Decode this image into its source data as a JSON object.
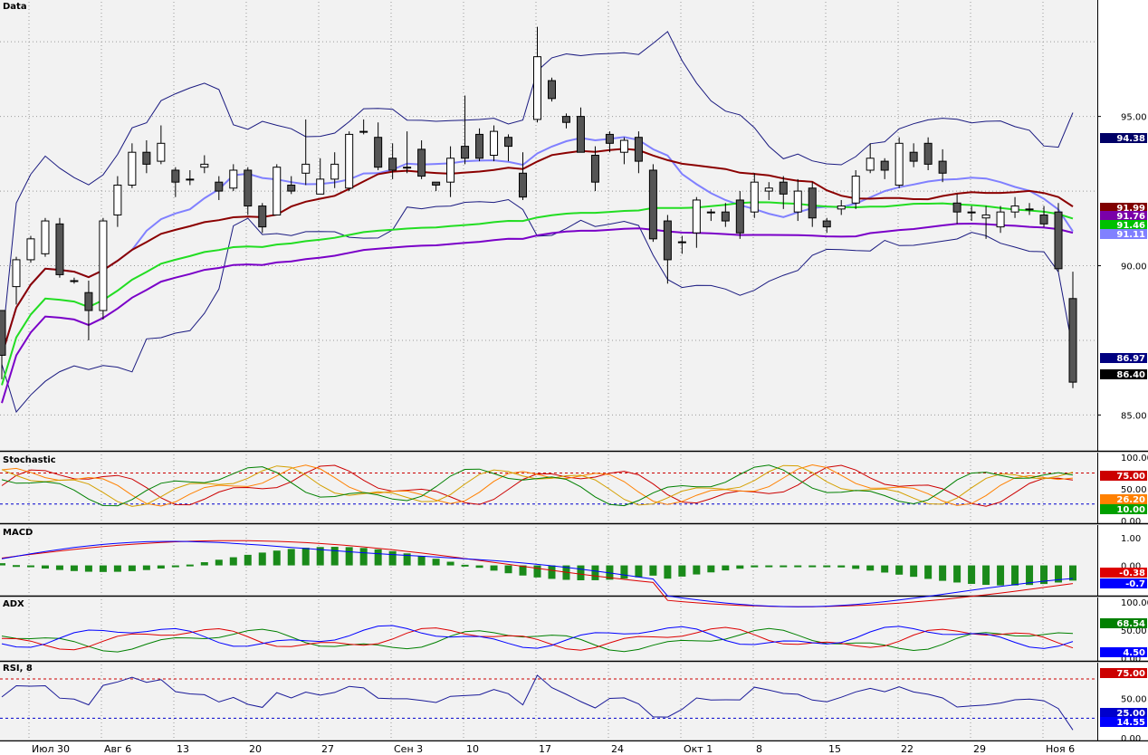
{
  "panels": {
    "data": {
      "label": "Data"
    },
    "stochastic": {
      "label": "Stochastic"
    },
    "macd": {
      "label": "MACD"
    },
    "adx": {
      "label": "ADX"
    },
    "rsi": {
      "label": "RSI, 8"
    }
  },
  "axis": {
    "price_ticks": [
      "95.00",
      "90.00",
      "85.00"
    ],
    "stoch_ticks": [
      "100.00",
      "50.00",
      "0.00"
    ],
    "macd_ticks": [
      "1.00",
      "0.00"
    ],
    "adx_ticks": [
      "100.00",
      "50.00",
      "0.00"
    ],
    "rsi_ticks": [
      "50.00",
      "0.00"
    ],
    "dates": [
      "Июл 30",
      "Авг 6",
      "13",
      "20",
      "27",
      "Сен 3",
      "10",
      "17",
      "24",
      "Окт 1",
      "8",
      "15",
      "22",
      "29",
      "Ноя 6"
    ]
  },
  "chart_data": {
    "type": "candlestick",
    "ylim": [
      83.8,
      98.9
    ],
    "candles": [
      [
        88.5,
        87.0,
        88.5,
        86.2
      ],
      [
        89.3,
        90.2,
        90.3,
        88.7
      ],
      [
        90.2,
        90.9,
        91.0,
        90.1
      ],
      [
        90.4,
        91.5,
        91.6,
        90.3
      ],
      [
        91.4,
        89.7,
        91.6,
        89.6
      ],
      [
        89.5,
        89.5,
        89.6,
        89.4
      ],
      [
        89.1,
        88.5,
        89.5,
        87.5
      ],
      [
        88.5,
        91.5,
        91.6,
        88.2
      ],
      [
        91.7,
        92.7,
        93.0,
        91.3
      ],
      [
        92.7,
        93.8,
        94.1,
        92.6
      ],
      [
        93.8,
        93.4,
        94.2,
        93.1
      ],
      [
        93.5,
        94.1,
        94.7,
        93.4
      ],
      [
        93.2,
        92.8,
        93.3,
        92.3
      ],
      [
        92.9,
        92.9,
        93.2,
        92.7
      ],
      [
        93.3,
        93.4,
        93.7,
        93.1
      ],
      [
        92.8,
        92.5,
        93.0,
        92.2
      ],
      [
        92.6,
        93.2,
        93.4,
        92.5
      ],
      [
        93.2,
        92.0,
        93.3,
        91.7
      ],
      [
        92.0,
        91.3,
        92.1,
        91.1
      ],
      [
        91.7,
        93.3,
        93.4,
        91.7
      ],
      [
        92.7,
        92.5,
        93.0,
        92.4
      ],
      [
        93.1,
        93.4,
        94.9,
        92.7
      ],
      [
        92.4,
        92.9,
        93.6,
        92.4
      ],
      [
        92.9,
        93.4,
        93.8,
        92.6
      ],
      [
        92.6,
        94.4,
        94.5,
        92.5
      ],
      [
        94.5,
        94.5,
        94.9,
        94.4
      ],
      [
        94.3,
        93.3,
        94.8,
        93.2
      ],
      [
        93.6,
        93.2,
        94.1,
        92.9
      ],
      [
        93.3,
        93.3,
        94.5,
        93.1
      ],
      [
        93.9,
        93.0,
        94.2,
        92.9
      ],
      [
        92.8,
        92.7,
        92.8,
        92.5
      ],
      [
        92.8,
        93.6,
        94.0,
        92.3
      ],
      [
        94.0,
        93.6,
        95.7,
        93.4
      ],
      [
        94.4,
        93.6,
        94.6,
        93.5
      ],
      [
        93.7,
        94.5,
        94.7,
        93.5
      ],
      [
        94.3,
        94.0,
        94.4,
        93.5
      ],
      [
        93.1,
        92.3,
        93.8,
        92.2
      ],
      [
        94.9,
        97.0,
        98.0,
        94.8
      ],
      [
        96.2,
        95.6,
        96.3,
        95.5
      ],
      [
        95.0,
        94.8,
        95.1,
        94.6
      ],
      [
        95.0,
        93.8,
        95.3,
        93.8
      ],
      [
        93.7,
        92.8,
        94.0,
        92.5
      ],
      [
        94.4,
        94.1,
        94.5,
        93.8
      ],
      [
        93.8,
        94.2,
        94.3,
        93.4
      ],
      [
        94.3,
        93.5,
        94.5,
        93.1
      ],
      [
        93.2,
        90.9,
        93.4,
        90.8
      ],
      [
        91.5,
        90.2,
        91.7,
        89.4
      ],
      [
        90.8,
        90.8,
        91.0,
        90.4
      ],
      [
        91.1,
        92.2,
        92.3,
        90.6
      ],
      [
        91.8,
        91.8,
        91.9,
        91.5
      ],
      [
        91.8,
        91.5,
        92.1,
        91.3
      ],
      [
        92.2,
        91.1,
        92.5,
        90.9
      ],
      [
        91.8,
        92.8,
        93.1,
        91.6
      ],
      [
        92.5,
        92.6,
        92.8,
        92.2
      ],
      [
        92.8,
        92.4,
        93.0,
        91.9
      ],
      [
        91.8,
        92.5,
        92.9,
        91.5
      ],
      [
        92.6,
        91.6,
        92.8,
        91.3
      ],
      [
        91.5,
        91.3,
        91.6,
        91.1
      ],
      [
        91.9,
        92.0,
        92.2,
        91.7
      ],
      [
        92.1,
        93.0,
        93.2,
        91.9
      ],
      [
        93.2,
        93.6,
        94.1,
        93.1
      ],
      [
        93.5,
        93.2,
        93.6,
        92.9
      ],
      [
        92.7,
        94.1,
        94.3,
        92.6
      ],
      [
        93.8,
        93.5,
        94.1,
        93.3
      ],
      [
        94.1,
        93.4,
        94.3,
        93.2
      ],
      [
        93.5,
        93.1,
        93.9,
        92.8
      ],
      [
        92.1,
        91.8,
        92.4,
        91.4
      ],
      [
        91.8,
        91.8,
        92.0,
        91.5
      ],
      [
        91.6,
        91.7,
        92.0,
        90.9
      ],
      [
        91.3,
        91.8,
        92.0,
        91.1
      ],
      [
        91.8,
        92.0,
        92.3,
        91.6
      ],
      [
        91.9,
        91.9,
        92.1,
        91.7
      ],
      [
        91.7,
        91.4,
        92.0,
        91.3
      ],
      [
        91.8,
        89.9,
        92.1,
        89.8
      ],
      [
        88.9,
        86.1,
        89.8,
        85.9
      ]
    ],
    "indicators": {
      "price_labels": [
        {
          "value": "94.38",
          "color": "#000066"
        },
        {
          "value": "91.99",
          "color": "#800000"
        },
        {
          "value": "91.76",
          "color": "#7a00a8"
        },
        {
          "value": "91.46",
          "color": "#00c000"
        },
        {
          "value": "91.11",
          "color": "#8080ff"
        },
        {
          "value": "86.97",
          "color": "#000080"
        },
        {
          "value": "86.40",
          "color": "#000000"
        }
      ],
      "stoch_labels": [
        {
          "value": "75.00",
          "color": "#cc0000"
        },
        {
          "value": "26.20",
          "color": "#ff8000"
        },
        {
          "value": "10.00",
          "color": "#00a000"
        }
      ],
      "macd_labels": [
        {
          "value": "-0.38",
          "color": "#dd0000"
        },
        {
          "value": "-0.7",
          "color": "#0000ff"
        }
      ],
      "adx_labels": [
        {
          "value": "68.54",
          "color": "#008000"
        },
        {
          "value": "4.50",
          "color": "#0000ff"
        }
      ],
      "rsi_labels": [
        {
          "value": "75.00",
          "color": "#cc0000"
        },
        {
          "value": "25.00",
          "color": "#0000cc"
        },
        {
          "value": "14.55",
          "color": "#0000ff"
        }
      ]
    }
  }
}
